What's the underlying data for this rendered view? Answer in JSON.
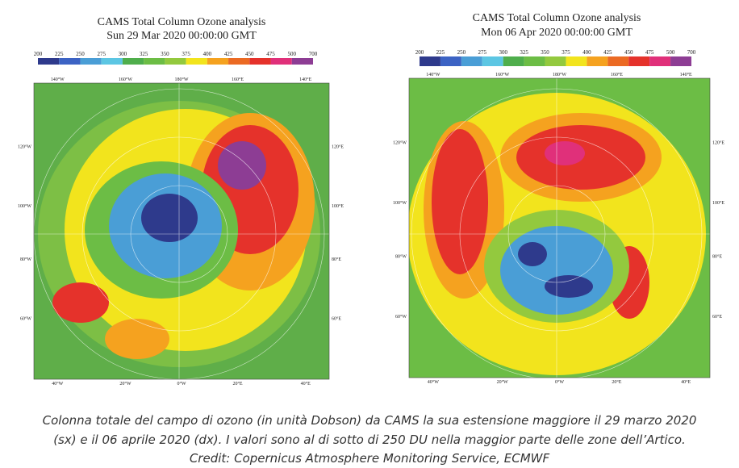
{
  "panels": [
    {
      "title": "CAMS Total Column Ozone analysis",
      "subtitle": "Sun 29 Mar 2020 00:00:00 GMT",
      "colorbar": {
        "labels": [
          "200",
          "225",
          "250",
          "275",
          "300",
          "325",
          "350",
          "375",
          "400",
          "425",
          "450",
          "475",
          "500",
          "700"
        ],
        "colors": [
          "#2e3a8c",
          "#3c63c4",
          "#4a9ed6",
          "#5cc6e3",
          "#4fae4c",
          "#6cbd45",
          "#93c93e",
          "#f2e41d",
          "#f5a21f",
          "#eb6a23",
          "#e5322b",
          "#e0307a",
          "#8d3d94"
        ]
      },
      "lon_labels": {
        "top": [
          "140°W",
          "160°W",
          "180°W",
          "160°E",
          "140°E"
        ],
        "left": [
          "120°W",
          "100°W",
          "80°W",
          "60°W"
        ],
        "right": [
          "120°E",
          "100°E",
          "80°E",
          "60°E"
        ],
        "bottom": [
          "40°W",
          "20°W",
          "0°W",
          "20°E",
          "40°E"
        ]
      }
    },
    {
      "title": "CAMS Total Column Ozone analysis",
      "subtitle": "Mon 06 Apr 2020 00:00:00 GMT",
      "colorbar": {
        "labels": [
          "200",
          "225",
          "250",
          "275",
          "300",
          "325",
          "350",
          "375",
          "400",
          "425",
          "450",
          "475",
          "500",
          "700"
        ],
        "colors": [
          "#2e3a8c",
          "#3c63c4",
          "#4a9ed6",
          "#5cc6e3",
          "#4fae4c",
          "#6cbd45",
          "#93c93e",
          "#f2e41d",
          "#f5a21f",
          "#eb6a23",
          "#e5322b",
          "#e0307a",
          "#8d3d94"
        ]
      },
      "lon_labels": {
        "top": [
          "140°W",
          "160°W",
          "180°W",
          "160°E",
          "140°E"
        ],
        "left": [
          "120°W",
          "100°W",
          "80°W",
          "60°W"
        ],
        "right": [
          "120°E",
          "100°E",
          "80°E",
          "60°E"
        ],
        "bottom": [
          "40°W",
          "20°W",
          "0°W",
          "20°E",
          "40°E"
        ]
      }
    }
  ],
  "caption": [
    "Colonna totale del campo di ozono (in unità Dobson) da CAMS la sua estensione maggiore il 29 marzo 2020",
    "(sx) e il 06 aprile 2020 (dx). I valori sono al di sotto di 250 DU nella maggior parte delle zone dell’Artico.",
    "Credit: Copernicus Atmosphere Monitoring Service, ECMWF"
  ]
}
